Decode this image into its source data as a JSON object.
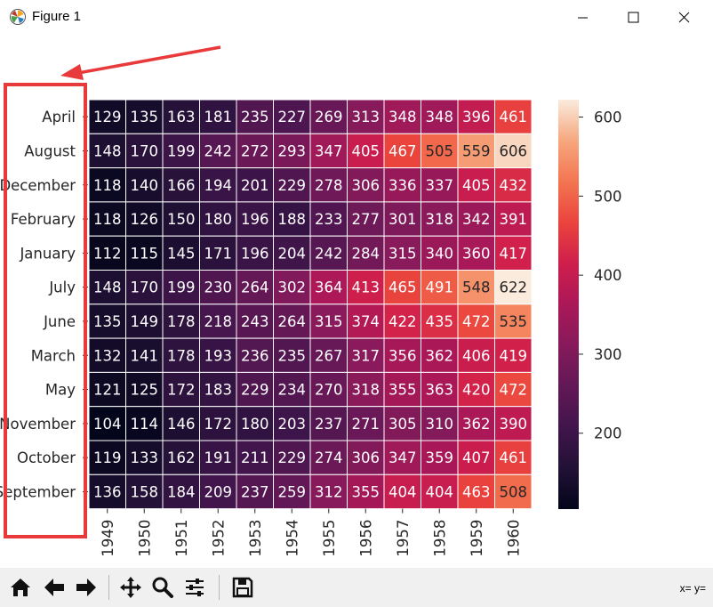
{
  "window": {
    "title": "Figure 1"
  },
  "toolbar": {
    "buttons": [
      "home-icon",
      "back-icon",
      "forward-icon",
      "pan-icon",
      "zoom-icon",
      "configure-icon",
      "save-icon"
    ],
    "coords_label": "x= y="
  },
  "annotation": {
    "color": "#e8393b"
  },
  "chart_data": {
    "type": "heatmap",
    "rows": [
      "April",
      "August",
      "December",
      "February",
      "January",
      "July",
      "June",
      "March",
      "May",
      "November",
      "October",
      "September"
    ],
    "columns": [
      "1949",
      "1950",
      "1951",
      "1952",
      "1953",
      "1954",
      "1955",
      "1956",
      "1957",
      "1958",
      "1959",
      "1960"
    ],
    "values": [
      [
        129,
        135,
        163,
        181,
        235,
        227,
        269,
        313,
        348,
        348,
        396,
        461
      ],
      [
        148,
        170,
        199,
        242,
        272,
        293,
        347,
        405,
        467,
        505,
        559,
        606
      ],
      [
        118,
        140,
        166,
        194,
        201,
        229,
        278,
        306,
        336,
        337,
        405,
        432
      ],
      [
        118,
        126,
        150,
        180,
        196,
        188,
        233,
        277,
        301,
        318,
        342,
        391
      ],
      [
        112,
        115,
        145,
        171,
        196,
        204,
        242,
        284,
        315,
        340,
        360,
        417
      ],
      [
        148,
        170,
        199,
        230,
        264,
        302,
        364,
        413,
        465,
        491,
        548,
        622
      ],
      [
        135,
        149,
        178,
        218,
        243,
        264,
        315,
        374,
        422,
        435,
        472,
        535
      ],
      [
        132,
        141,
        178,
        193,
        236,
        235,
        267,
        317,
        356,
        362,
        406,
        419
      ],
      [
        121,
        125,
        172,
        183,
        229,
        234,
        270,
        318,
        355,
        363,
        420,
        472
      ],
      [
        104,
        114,
        146,
        172,
        180,
        203,
        237,
        271,
        305,
        310,
        362,
        390
      ],
      [
        119,
        133,
        162,
        191,
        211,
        229,
        274,
        306,
        347,
        359,
        407,
        461
      ],
      [
        136,
        158,
        184,
        209,
        237,
        259,
        312,
        355,
        404,
        404,
        463,
        508
      ]
    ],
    "colormap": "rocket",
    "vmin": 104,
    "vmax": 622,
    "colorbar_ticks": [
      200,
      300,
      400,
      500,
      600
    ],
    "annot": true,
    "linecolor": "#ffffff",
    "grid": false
  }
}
